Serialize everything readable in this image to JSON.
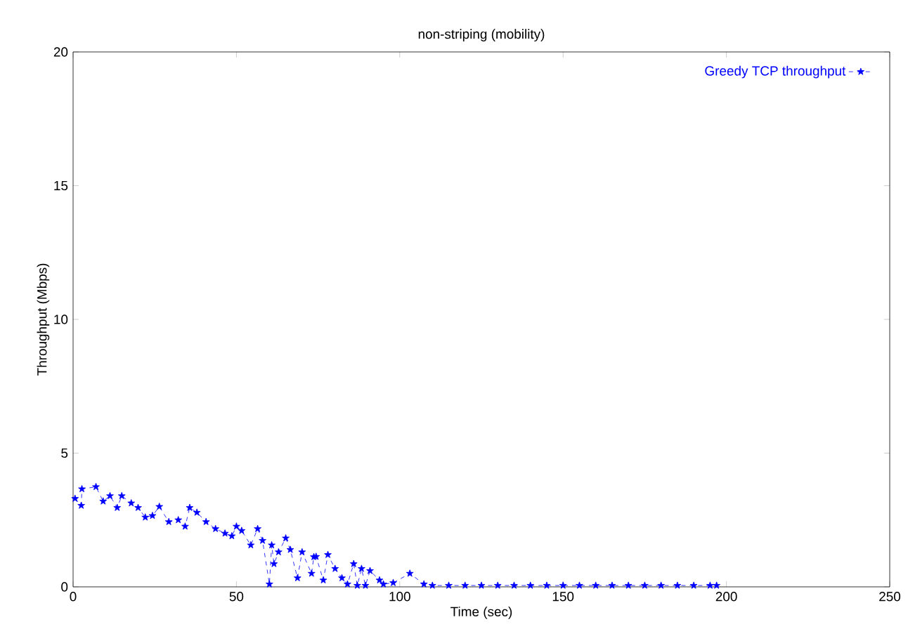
{
  "chart_data": {
    "type": "line",
    "title": "non-striping (mobility)",
    "xlabel": "Time (sec)",
    "ylabel": "Throughput (Mbps)",
    "xlim": [
      0,
      250
    ],
    "ylim": [
      0,
      20
    ],
    "xticks": [
      0,
      50,
      100,
      150,
      200,
      250
    ],
    "yticks": [
      0,
      5,
      10,
      15,
      20
    ],
    "legend": "top right",
    "marker": "star",
    "line_style": "dashed",
    "series": [
      {
        "name": "Greedy TCP throughput",
        "color": "#0000ff",
        "x": [
          0.6,
          2.5,
          2.7,
          7,
          9.2,
          11.3,
          13.5,
          14.9,
          17.8,
          19.9,
          22.1,
          24.3,
          26.4,
          29.3,
          32.2,
          34.3,
          35.7,
          37.9,
          40.7,
          43.6,
          46.5,
          48.6,
          50,
          51.6,
          54.4,
          56.5,
          58,
          60.1,
          60.8,
          61.5,
          62.9,
          65.1,
          66.5,
          68.7,
          70.1,
          73,
          73.7,
          74.4,
          76.6,
          78,
          80.2,
          82.3,
          84,
          85.9,
          87,
          88.3,
          89.5,
          90.9,
          93.8,
          95,
          98,
          103.1,
          107.4,
          110,
          115,
          120,
          125,
          130,
          135,
          140,
          145,
          150,
          155,
          160,
          165,
          170,
          175,
          180,
          185,
          190,
          195,
          197
        ],
        "values": [
          3.3,
          3.04,
          3.66,
          3.74,
          3.2,
          3.4,
          2.96,
          3.4,
          3.13,
          2.96,
          2.6,
          2.66,
          3.0,
          2.43,
          2.5,
          2.26,
          2.96,
          2.78,
          2.43,
          2.17,
          2.0,
          1.9,
          2.26,
          2.1,
          1.56,
          2.17,
          1.73,
          0.1,
          1.56,
          0.86,
          1.3,
          1.82,
          1.39,
          0.33,
          1.3,
          0.5,
          1.12,
          1.13,
          0.25,
          1.2,
          0.68,
          0.33,
          0.1,
          0.86,
          0.05,
          0.68,
          0.05,
          0.6,
          0.25,
          0.1,
          0.15,
          0.5,
          0.1,
          0.05,
          0.05,
          0.05,
          0.05,
          0.05,
          0.05,
          0.05,
          0.05,
          0.05,
          0.05,
          0.05,
          0.05,
          0.05,
          0.05,
          0.05,
          0.05,
          0.05,
          0.05,
          0.05
        ]
      }
    ]
  }
}
